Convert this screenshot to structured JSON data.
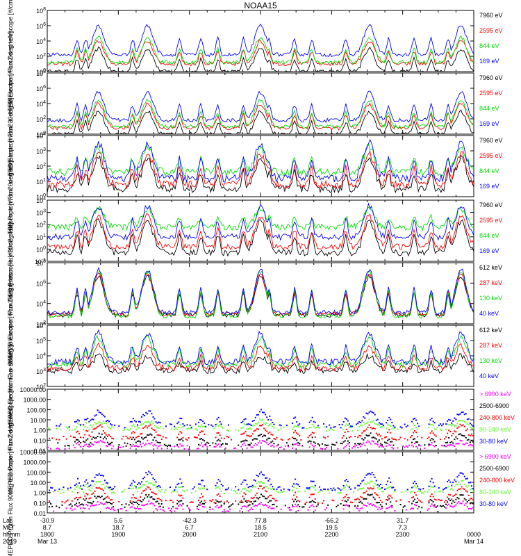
{
  "title": "NOAA15",
  "colors": {
    "blue": "#0000ff",
    "red": "#ff0000",
    "green": "#00dd00",
    "black": "#000000",
    "magenta": "#ff00ff",
    "lime": "#66ff33"
  },
  "footer": {
    "row_labels": [
      "Lat",
      "MLT",
      "hhmm",
      "2019"
    ],
    "ticks": [
      {
        "lat": "-30.9",
        "mlt": "8.7",
        "time": "1800",
        "date": "Mar 13"
      },
      {
        "lat": "5.6",
        "mlt": "18.7",
        "time": "1900",
        "date": ""
      },
      {
        "lat": "-42.3",
        "mlt": "6.7",
        "time": "2000",
        "date": ""
      },
      {
        "lat": "77.8",
        "mlt": "18.5",
        "time": "2100",
        "date": ""
      },
      {
        "lat": "-66.2",
        "mlt": "19.5",
        "time": "2200",
        "date": ""
      },
      {
        "lat": "31.7",
        "mlt": "7.3",
        "time": "2300",
        "date": ""
      },
      {
        "lat": "",
        "mlt": "",
        "time": "0000",
        "date": "Mar 14"
      }
    ]
  },
  "chart_data": [
    {
      "type": "line",
      "ylabel": "TED Electron Flux 0deg telescope [#/cm2-s-str-eV]",
      "yscale": "log",
      "ylim_exp": [
        0,
        8
      ],
      "yticks": [
        "10^0",
        "10^2",
        "10^4",
        "10^6",
        "10^8"
      ],
      "series": [
        {
          "name": "7960 eV",
          "color": "black",
          "level": [
            0,
            3.0
          ]
        },
        {
          "name": "2595 eV",
          "color": "red",
          "level": [
            1.0,
            4.0
          ]
        },
        {
          "name": "844 eV",
          "color": "green",
          "level": [
            1.2,
            4.5
          ]
        },
        {
          "name": "169 eV",
          "color": "blue",
          "level": [
            2.2,
            6.0
          ]
        }
      ]
    },
    {
      "type": "line",
      "ylabel": "TED Electron Flux 30deg telescope [#/cm2-s-str-eV]",
      "yscale": "log",
      "ylim_exp": [
        0,
        8
      ],
      "yticks": [
        "10^0",
        "10^2",
        "10^4",
        "10^6",
        "10^8"
      ],
      "series": [
        {
          "name": "7960 eV",
          "color": "black",
          "level": [
            0,
            3.0
          ]
        },
        {
          "name": "2595 eV",
          "color": "red",
          "level": [
            0.8,
            4.0
          ]
        },
        {
          "name": "844 eV",
          "color": "green",
          "level": [
            1.0,
            4.5
          ]
        },
        {
          "name": "169 eV",
          "color": "blue",
          "level": [
            1.8,
            5.5
          ]
        }
      ]
    },
    {
      "type": "line",
      "ylabel": "TED Proton Flux 0deg telescope [#/cm2-s-str-eV]",
      "yscale": "log",
      "ylim_exp": [
        0,
        4
      ],
      "yticks": [
        "10^0",
        "10^1",
        "10^2",
        "10^3",
        "10^4"
      ],
      "series": [
        {
          "name": "7960 eV",
          "color": "black",
          "level": [
            0.5,
            2.5
          ]
        },
        {
          "name": "2595 eV",
          "color": "red",
          "level": [
            0.8,
            2.8
          ]
        },
        {
          "name": "844 eV",
          "color": "green",
          "level": [
            1.6,
            3.2
          ]
        },
        {
          "name": "169 eV",
          "color": "blue",
          "level": [
            1.2,
            3.5
          ]
        }
      ]
    },
    {
      "type": "line",
      "ylabel": "TED Proton Flux 30deg telescope [#/cm2-s-str-eV]",
      "yscale": "log",
      "ylim_exp": [
        -1,
        4
      ],
      "yticks": [
        "10^-1",
        "10^0",
        "10^1",
        "10^2",
        "10^3",
        "10^4"
      ],
      "series": [
        {
          "name": "7960 eV",
          "color": "black",
          "level": [
            -0.3,
            2.3
          ]
        },
        {
          "name": "2595 eV",
          "color": "red",
          "level": [
            0.2,
            2.7
          ]
        },
        {
          "name": "844 eV",
          "color": "green",
          "level": [
            1.8,
            3.3
          ]
        },
        {
          "name": "169 eV",
          "color": "blue",
          "level": [
            1.0,
            3.5
          ]
        }
      ]
    },
    {
      "type": "line",
      "ylabel": "MEPED Electron Flux 0deg telescope [#/cm2-s-str]",
      "yscale": "log",
      "ylim_exp": [
        1,
        8
      ],
      "yticks": [
        "10^2",
        "10^4",
        "10^6",
        "10^8"
      ],
      "series": [
        {
          "name": "612 keV",
          "color": "black",
          "level": [
            2.0,
            6.5
          ]
        },
        {
          "name": "287 keV",
          "color": "red",
          "level": [
            2.1,
            6.7
          ]
        },
        {
          "name": "130 keV",
          "color": "green",
          "level": [
            1.9,
            7.0
          ]
        },
        {
          "name": "40 keV",
          "color": "blue",
          "level": [
            2.3,
            7.2
          ]
        }
      ]
    },
    {
      "type": "line",
      "ylabel": "MEPED Electron Flux 90deg telescope [#/cm2-s-str]",
      "yscale": "log",
      "ylim_exp": [
        1,
        6
      ],
      "yticks": [
        "10^2",
        "10^3",
        "10^4",
        "10^5",
        "10^6"
      ],
      "series": [
        {
          "name": "612 keV",
          "color": "black",
          "level": [
            2.3,
            3.5
          ]
        },
        {
          "name": "287 keV",
          "color": "red",
          "level": [
            2.5,
            4.3
          ]
        },
        {
          "name": "130 keV",
          "color": "green",
          "level": [
            2.8,
            5.0
          ]
        },
        {
          "name": "40 keV",
          "color": "blue",
          "level": [
            3.0,
            5.4
          ]
        }
      ]
    },
    {
      "type": "scatter",
      "ylabel": "MEPED Proton Flux 0deg telescope [#/cm2-s-str-keV]",
      "yscale": "log",
      "ylim_exp": [
        -2,
        4
      ],
      "yticks": [
        "0.01",
        "0.10",
        "1.00",
        "10.00",
        "100.00",
        "1000.00",
        "10000.00"
      ],
      "series": [
        {
          "name": "> 6900 keV",
          "color": "magenta",
          "level": [
            -1.7,
            -1.2
          ]
        },
        {
          "name": "2500-6900",
          "color": "black",
          "level": [
            -1.4,
            -0.5
          ]
        },
        {
          "name": "240-800 keV",
          "color": "red",
          "level": [
            -0.8,
            0.4
          ]
        },
        {
          "name": "80-240 keV",
          "color": "lime",
          "level": [
            0.1,
            0.9
          ]
        },
        {
          "name": "30-80 keV",
          "color": "blue",
          "level": [
            0.4,
            1.8
          ]
        }
      ]
    },
    {
      "type": "scatter",
      "ylabel": "MEPED Proton Flux 90deg telescope [#/cm2-s-str-keV]",
      "yscale": "log",
      "ylim_exp": [
        -2,
        4
      ],
      "yticks": [
        "0.01",
        "0.10",
        "1.00",
        "10.00",
        "100.00",
        "1000.00",
        "10000.00"
      ],
      "series": [
        {
          "name": "> 6900 keV",
          "color": "magenta",
          "level": [
            -1.7,
            -1.0
          ]
        },
        {
          "name": "2500-6900",
          "color": "black",
          "level": [
            -1.3,
            -0.3
          ]
        },
        {
          "name": "240-800 keV",
          "color": "red",
          "level": [
            -0.9,
            0.5
          ]
        },
        {
          "name": "80-240 keV",
          "color": "lime",
          "level": [
            0.1,
            1.0
          ]
        },
        {
          "name": "30-80 keV",
          "color": "blue",
          "level": [
            0.4,
            1.9
          ]
        }
      ]
    }
  ]
}
